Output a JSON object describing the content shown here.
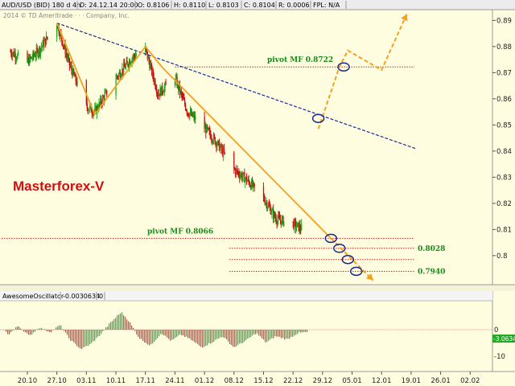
{
  "header": {
    "cells": [
      "AUD/USD (BID) 180 d 4h",
      "D: 24.12.14 20:00",
      "O: 0.8106",
      "H: 0.8110",
      "L: 0.8103",
      "C: 0.8104",
      "R: 0.0006",
      "FPL: N/A"
    ],
    "copyright": "2014 © TD Ameritrade · · · Company, Inc."
  },
  "brand_label": "Masterforex-V",
  "oscillator": {
    "name": "AwesomeOscillator",
    "value": "-0.0030634",
    "param": "0",
    "y_ticks": [
      "0",
      "-10"
    ],
    "badge": "-3.0634"
  },
  "colors": {
    "background": "#fefde0",
    "candle_up": "#22aa22",
    "candle_down": "#cc1111",
    "trend_orange": "#f5a020",
    "trend_blue": "#1c2a8c",
    "pivot_line": "#d62020",
    "pivot_text": "#1a8a1a",
    "osc_up": "#4caf50",
    "osc_down": "#e05050"
  },
  "chart_data": {
    "type": "candlestick",
    "y_range": [
      0.7895,
      0.8935
    ],
    "y_ticks": [
      "0.89",
      "0.88",
      "0.87",
      "0.86",
      "0.85",
      "0.84",
      "0.83",
      "0.82",
      "0.81",
      "0.8"
    ],
    "x_ticks": [
      "20.10",
      "27.10",
      "03.11",
      "10.11",
      "17.11",
      "24.11",
      "01.12",
      "08.12",
      "15.12",
      "22.12",
      "29.12",
      "05.01",
      "12.01",
      "19.01",
      "26.01",
      "02.02"
    ],
    "price_path": [
      {
        "date": "16.10",
        "price": 0.878
      },
      {
        "date": "20.10",
        "price": 0.874
      },
      {
        "date": "23.10",
        "price": 0.879
      },
      {
        "date": "27.10",
        "price": 0.889
      },
      {
        "date": "30.10",
        "price": 0.873
      },
      {
        "date": "03.11",
        "price": 0.857
      },
      {
        "date": "05.11",
        "price": 0.855
      },
      {
        "date": "10.11",
        "price": 0.868
      },
      {
        "date": "14.11",
        "price": 0.876
      },
      {
        "date": "17.11",
        "price": 0.879
      },
      {
        "date": "20.11",
        "price": 0.862
      },
      {
        "date": "24.11",
        "price": 0.868
      },
      {
        "date": "27.11",
        "price": 0.855
      },
      {
        "date": "01.12",
        "price": 0.849
      },
      {
        "date": "04.12",
        "price": 0.843
      },
      {
        "date": "08.12",
        "price": 0.833
      },
      {
        "date": "11.12",
        "price": 0.829
      },
      {
        "date": "15.12",
        "price": 0.822
      },
      {
        "date": "18.12",
        "price": 0.814
      },
      {
        "date": "22.12",
        "price": 0.812
      },
      {
        "date": "24.12",
        "price": 0.8104
      }
    ],
    "levels": [
      {
        "label": "pivot MF 0.8722",
        "value": 0.8722
      },
      {
        "label": "pivot MF 0.8066",
        "value": 0.8066
      },
      {
        "label": "0.8028",
        "value": 0.8028
      },
      {
        "label": "",
        "value": 0.7985
      },
      {
        "label": "0.7940",
        "value": 0.794
      }
    ],
    "trendlines": [
      {
        "color": "blue",
        "style": "dashed",
        "from": {
          "date": "27.10",
          "price": 0.889
        },
        "to": {
          "date": "20.01",
          "price": 0.841
        }
      },
      {
        "color": "orange",
        "style": "solid",
        "from": {
          "date": "27.10",
          "price": 0.889
        },
        "to": {
          "date": "05.11",
          "price": 0.854
        }
      },
      {
        "color": "orange",
        "style": "solid",
        "from": {
          "date": "05.11",
          "price": 0.854
        },
        "to": {
          "date": "17.11",
          "price": 0.88
        }
      },
      {
        "color": "orange",
        "style": "solid",
        "from": {
          "date": "17.11",
          "price": 0.88
        },
        "to": {
          "date": "21.11",
          "price": 0.872
        }
      },
      {
        "color": "orange",
        "style": "solid",
        "from": {
          "date": "21.11",
          "price": 0.872
        },
        "to": {
          "date": "31.12",
          "price": 0.8066
        }
      }
    ],
    "forecasts": [
      {
        "direction": "up",
        "path": [
          {
            "date": "28.12",
            "price": 0.8485
          },
          {
            "date": "02.01",
            "price": 0.8722
          },
          {
            "date": "04.01",
            "price": 0.8785
          },
          {
            "date": "12.01",
            "price": 0.871
          },
          {
            "date": "18.01",
            "price": 0.8925
          }
        ]
      },
      {
        "direction": "down",
        "path": [
          {
            "date": "31.12",
            "price": 0.8066
          },
          {
            "date": "10.01",
            "price": 0.7905
          }
        ]
      }
    ],
    "markers": [
      {
        "date": "28.12",
        "price": 0.8525
      },
      {
        "date": "03.01",
        "price": 0.8722
      },
      {
        "date": "31.12",
        "price": 0.8066
      },
      {
        "date": "02.01",
        "price": 0.8028
      },
      {
        "date": "04.01",
        "price": 0.7985
      },
      {
        "date": "06.01",
        "price": 0.794
      }
    ]
  }
}
